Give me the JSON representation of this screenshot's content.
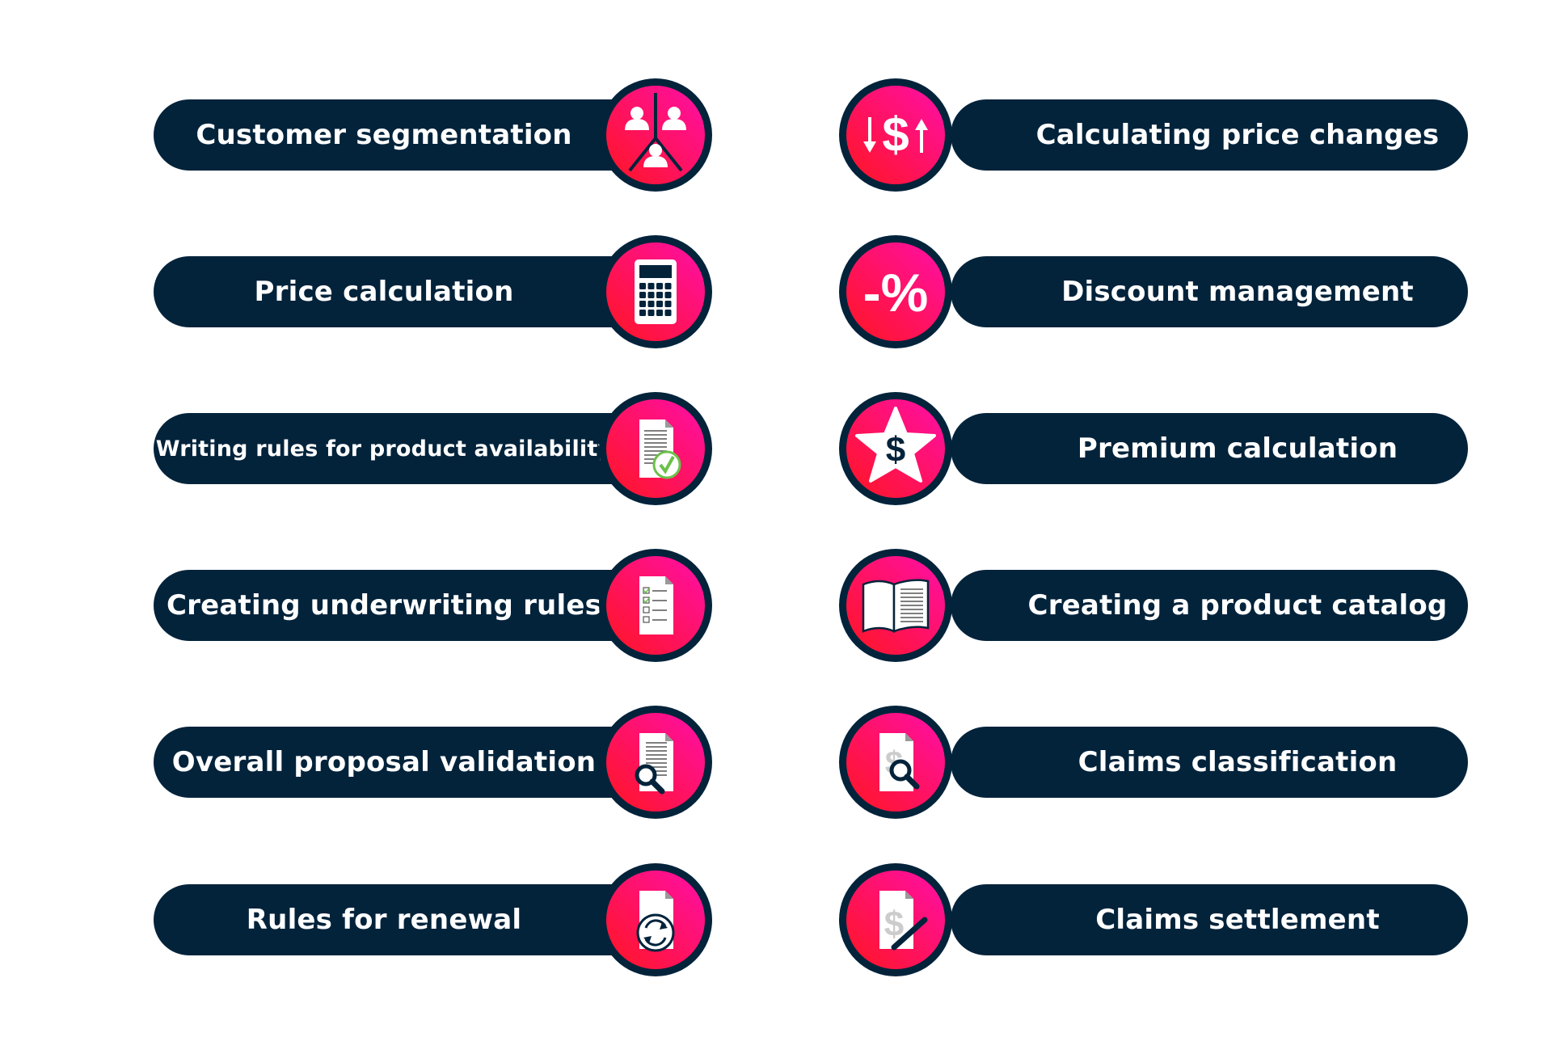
{
  "colors": {
    "pill": "#03233b",
    "accent_top": "#ff0fa8",
    "accent_bottom": "#ff1522",
    "icon": "#ffffff"
  },
  "left_items": [
    {
      "label": "Customer segmentation",
      "icon": "customer-segments-icon"
    },
    {
      "label": "Price calculation",
      "icon": "calculator-icon"
    },
    {
      "label": "Writing rules for product availability",
      "icon": "document-check-icon"
    },
    {
      "label": "Creating underwriting rules",
      "icon": "checklist-document-icon"
    },
    {
      "label": "Overall proposal validation",
      "icon": "document-search-icon"
    },
    {
      "label": "Rules for renewal",
      "icon": "document-renew-icon"
    }
  ],
  "right_items": [
    {
      "label": "Calculating price changes",
      "icon": "dollar-up-down-icon"
    },
    {
      "label": "Discount management",
      "icon": "percent-discount-icon"
    },
    {
      "label": "Premium calculation",
      "icon": "star-dollar-icon"
    },
    {
      "label": "Creating a product catalog",
      "icon": "open-book-icon"
    },
    {
      "label": "Claims classification",
      "icon": "dollar-document-search-icon"
    },
    {
      "label": "Claims settlement",
      "icon": "dollar-document-pen-icon"
    }
  ],
  "icon_text": {
    "dollar": "$",
    "percent": "-%"
  }
}
